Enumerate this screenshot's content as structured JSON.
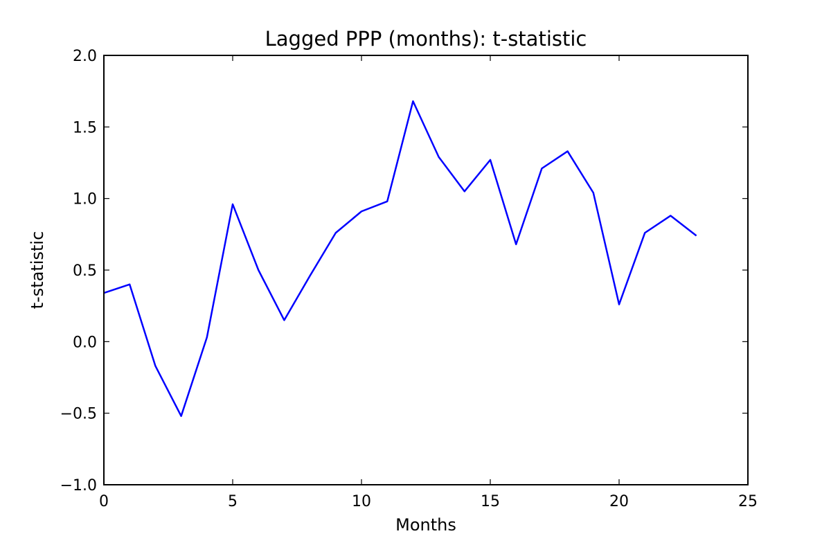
{
  "chart_data": {
    "type": "line",
    "title": "Lagged PPP (months): t-statistic",
    "xlabel": "Months",
    "ylabel": "t-statistic",
    "xlim": [
      0,
      25
    ],
    "ylim": [
      -1.0,
      2.0
    ],
    "x_ticks": [
      0,
      5,
      10,
      15,
      20,
      25
    ],
    "x_tick_labels": [
      "0",
      "5",
      "10",
      "15",
      "20",
      "25"
    ],
    "y_ticks": [
      -1.0,
      -0.5,
      0.0,
      0.5,
      1.0,
      1.5,
      2.0
    ],
    "y_tick_labels": [
      "−1.0",
      "−0.5",
      "0.0",
      "0.5",
      "1.0",
      "1.5",
      "2.0"
    ],
    "grid": false,
    "legend": "none",
    "series": [
      {
        "color": "#0000ff",
        "x": [
          0,
          1,
          2,
          3,
          4,
          5,
          6,
          7,
          8,
          9,
          10,
          11,
          12,
          13,
          14,
          15,
          16,
          17,
          18,
          19,
          20,
          21,
          22,
          23
        ],
        "y": [
          0.34,
          0.4,
          -0.17,
          -0.52,
          0.03,
          0.96,
          0.5,
          0.15,
          0.46,
          0.76,
          0.91,
          0.98,
          1.68,
          1.29,
          1.05,
          1.27,
          0.68,
          1.21,
          1.33,
          1.04,
          0.26,
          0.76,
          0.88,
          0.74
        ]
      }
    ]
  }
}
